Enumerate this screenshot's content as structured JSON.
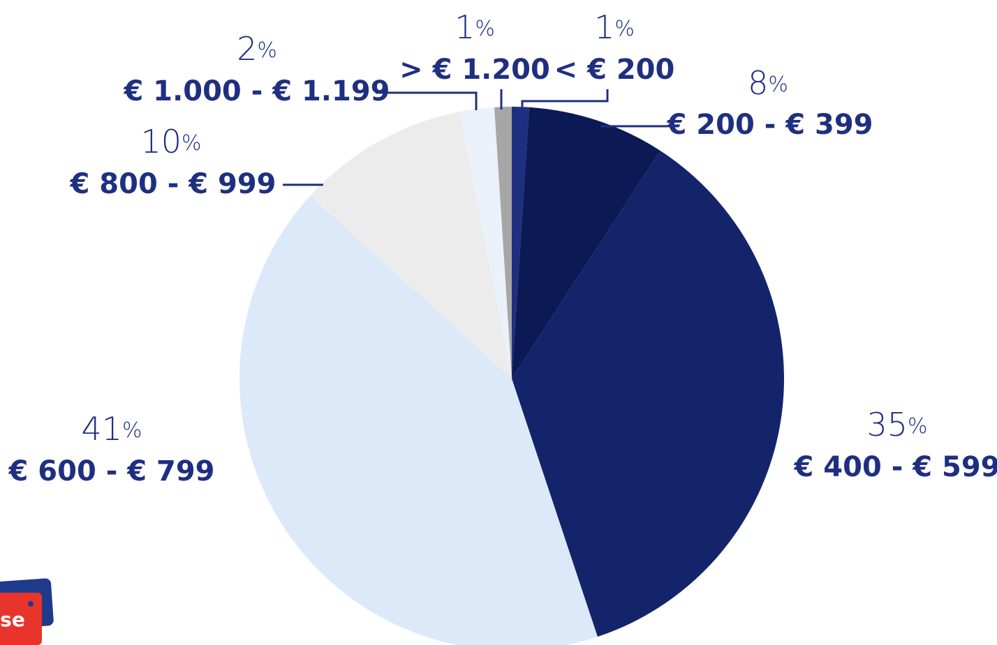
{
  "chart_data": {
    "type": "pie",
    "categories": [
      "< € 200",
      "€ 200 - € 399",
      "€ 400 - € 599",
      "€ 600 - € 799",
      "€ 800 - € 999",
      "€ 1.000 - € 1.199",
      "> € 1.200"
    ],
    "values": [
      1,
      8,
      35,
      41,
      10,
      2,
      1
    ],
    "value_labels": [
      "1%",
      "8%",
      "35%",
      "41%",
      "10%",
      "2%",
      "1%"
    ],
    "colors": [
      "#1f2f80",
      "#0b1a55",
      "#14246b",
      "#dbe9f8",
      "#ececec",
      "#eaf1fb",
      "#a6a6a6"
    ]
  },
  "badge": "se"
}
